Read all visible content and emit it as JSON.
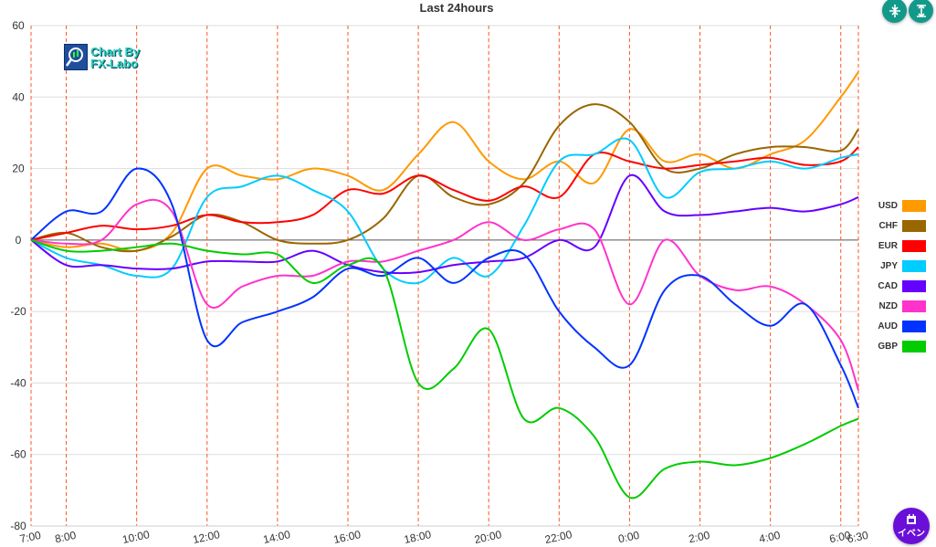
{
  "title": "Last 24hours",
  "logo_text": [
    "Chart By",
    "FX-Labo"
  ],
  "buttons": {
    "collapse_icon": "collapse-vertical-icon",
    "expand_icon": "expand-vertical-icon",
    "event_label": "イベン",
    "event_icon": "calendar-icon"
  },
  "chart_data": {
    "type": "line",
    "title": "Last 24hours",
    "xlabel": "",
    "ylabel": "",
    "ylim": [
      -80,
      60
    ],
    "yticks": [
      "60",
      "40",
      "20",
      "0",
      "-20",
      "-40",
      "-60",
      "-80"
    ],
    "ytick_values": [
      60,
      40,
      20,
      0,
      -20,
      -40,
      -60,
      -80
    ],
    "xticks": [
      "7:00",
      "8:00",
      "10:00",
      "12:00",
      "14:00",
      "16:00",
      "18:00",
      "20:00",
      "22:00",
      "0:00",
      "2:00",
      "4:00",
      "6:00",
      "6:30"
    ],
    "xtick_hours": [
      0,
      1,
      3,
      5,
      7,
      9,
      11,
      13,
      15,
      17,
      19,
      21,
      23,
      23.5
    ],
    "x_unit": "hours since 7:00",
    "x": [
      0,
      1,
      2,
      3,
      4,
      5,
      6,
      7,
      8,
      9,
      10,
      11,
      12,
      13,
      14,
      15,
      16,
      17,
      18,
      19,
      20,
      21,
      22,
      23,
      23.5
    ],
    "grid": true,
    "legend_position": "right",
    "series": [
      {
        "name": "USD",
        "color": "#ff9900",
        "values": [
          0,
          -2,
          -1,
          -3,
          2,
          20,
          18,
          17,
          20,
          18,
          14,
          24,
          33,
          22,
          17,
          22,
          16,
          31,
          22,
          24,
          20,
          24,
          28,
          40,
          47
        ]
      },
      {
        "name": "CHF",
        "color": "#996600",
        "values": [
          0,
          2,
          -2,
          -3,
          1,
          7,
          5,
          0,
          -1,
          0,
          6,
          18,
          12,
          10,
          16,
          32,
          38,
          33,
          20,
          20,
          24,
          26,
          26,
          25,
          31
        ]
      },
      {
        "name": "EUR",
        "color": "#ff0000",
        "values": [
          0,
          2,
          4,
          3,
          4,
          7,
          5,
          5,
          7,
          14,
          13,
          18,
          14,
          11,
          15,
          12,
          24,
          22,
          20,
          21,
          22,
          23,
          21,
          22,
          26
        ]
      },
      {
        "name": "JPY",
        "color": "#00ccff",
        "values": [
          0,
          -5,
          -7,
          -10,
          -8,
          12,
          15,
          18,
          14,
          8,
          -8,
          -12,
          -5,
          -10,
          4,
          22,
          24,
          28,
          12,
          19,
          20,
          22,
          20,
          23,
          24
        ]
      },
      {
        "name": "CAD",
        "color": "#6600ff",
        "values": [
          0,
          -7,
          -7,
          -8,
          -8,
          -6,
          -6,
          -6,
          -3,
          -7,
          -9,
          -9,
          -7,
          -6,
          -5,
          0,
          -2,
          18,
          8,
          7,
          8,
          9,
          8,
          10,
          12
        ]
      },
      {
        "name": "NZD",
        "color": "#ff33cc",
        "values": [
          0,
          -1,
          0,
          10,
          8,
          -18,
          -13,
          -10,
          -10,
          -6,
          -6,
          -3,
          0,
          5,
          0,
          3,
          3,
          -18,
          0,
          -10,
          -14,
          -13,
          -18,
          -28,
          -42
        ]
      },
      {
        "name": "AUD",
        "color": "#0033ff",
        "values": [
          0,
          8,
          8,
          20,
          10,
          -28,
          -23,
          -20,
          -16,
          -8,
          -10,
          -5,
          -12,
          -5,
          -4,
          -20,
          -30,
          -35,
          -14,
          -10,
          -18,
          -24,
          -18,
          -35,
          -47
        ]
      },
      {
        "name": "GBP",
        "color": "#00cc00",
        "values": [
          0,
          -3,
          -3,
          -2,
          -1,
          -3,
          -4,
          -4,
          -12,
          -7,
          -8,
          -40,
          -36,
          -25,
          -50,
          -47,
          -55,
          -72,
          -64,
          -62,
          -63,
          -61,
          -57,
          -52,
          -50
        ]
      }
    ]
  }
}
